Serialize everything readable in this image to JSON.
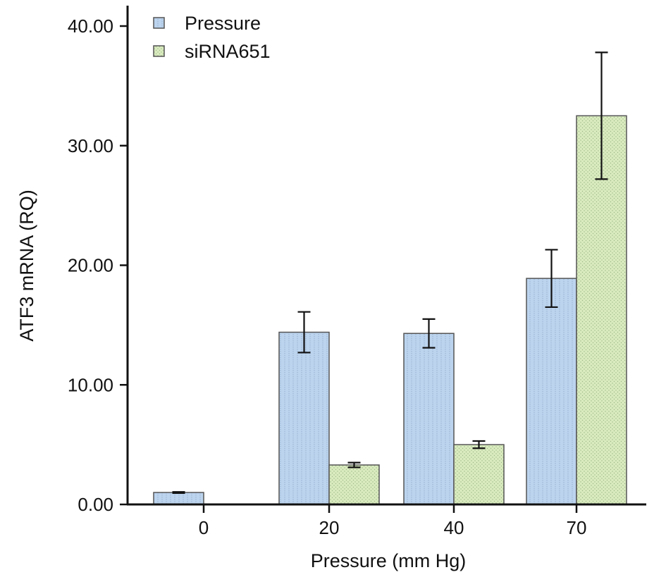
{
  "chart_data": {
    "type": "bar",
    "categories": [
      "0",
      "20",
      "40",
      "70"
    ],
    "series": [
      {
        "name": "Pressure",
        "values": [
          1.0,
          14.4,
          14.3,
          18.9
        ],
        "error": [
          0.05,
          1.7,
          1.2,
          2.4
        ],
        "color": "#bcd4ee"
      },
      {
        "name": "siRNA651",
        "values": [
          null,
          3.3,
          5.0,
          32.5
        ],
        "error": [
          null,
          0.2,
          0.3,
          5.3
        ],
        "color": "#d9ebbf"
      }
    ],
    "title": "",
    "xlabel": "Pressure (mm Hg)",
    "ylabel": "ATF3 mRNA (RQ)",
    "ylim": [
      0,
      40
    ],
    "yticks": [
      0,
      10,
      20,
      30,
      40
    ],
    "ytick_labels": [
      "0.00",
      "10.00",
      "20.00",
      "30.00",
      "40.00"
    ],
    "grid": false,
    "legend": "top-left"
  }
}
